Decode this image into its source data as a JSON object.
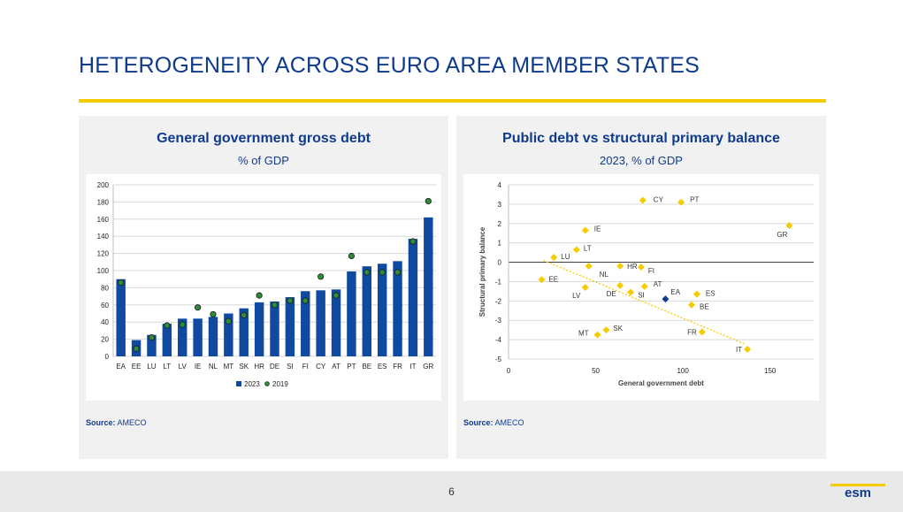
{
  "slide": {
    "title": "HETEROGENEITY ACROSS EURO AREA MEMBER STATES",
    "page_number": "6",
    "logo_text": "esm",
    "colors": {
      "title": "#0f3b8c",
      "rule": "#f5cc00",
      "bar": "#0f4aa0",
      "dot": "#2e8b3a",
      "diamond": "#f5cc00",
      "ea_diamond": "#0f3b8c"
    }
  },
  "left_panel": {
    "title": "General government gross debt",
    "subtitle": "% of GDP",
    "source_label": "Source:",
    "source_text": "AMECO"
  },
  "right_panel": {
    "title": "Public debt vs structural primary balance",
    "subtitle": "2023, % of GDP",
    "source_label": "Source:",
    "source_text": "AMECO"
  },
  "chart_data": [
    {
      "type": "bar",
      "title": "General government gross debt",
      "subtitle": "% of GDP",
      "categories": [
        "EA",
        "EE",
        "LU",
        "LT",
        "LV",
        "IE",
        "NL",
        "MT",
        "SK",
        "HR",
        "DE",
        "SI",
        "FI",
        "CY",
        "AT",
        "PT",
        "BE",
        "ES",
        "FR",
        "IT",
        "GR"
      ],
      "series": [
        {
          "name": "2023",
          "kind": "bar",
          "values": [
            90,
            19,
            25,
            38,
            44,
            44,
            46,
            50,
            56,
            63,
            64,
            69,
            76,
            77,
            78,
            99,
            105,
            108,
            111,
            137,
            162
          ]
        },
        {
          "name": "2019",
          "kind": "dot",
          "values": [
            86,
            9,
            22,
            36,
            37,
            57,
            49,
            41,
            48,
            71,
            60,
            65,
            65,
            93,
            71,
            117,
            98,
            98,
            98,
            134,
            181
          ]
        }
      ],
      "ylim": [
        0,
        200
      ],
      "yticks": [
        0,
        20,
        40,
        60,
        80,
        100,
        120,
        140,
        160,
        180,
        200
      ],
      "legend_position": "bottom",
      "grid": true
    },
    {
      "type": "scatter",
      "title": "Public debt vs structural primary balance",
      "subtitle": "2023, % of GDP",
      "xlabel": "General government debt",
      "ylabel": "Structural primary balance",
      "xlim": [
        0,
        175
      ],
      "ylim": [
        -5,
        4
      ],
      "xticks": [
        0,
        50,
        100,
        150
      ],
      "yticks": [
        -5,
        -4,
        -3,
        -2,
        -1,
        0,
        1,
        2,
        3,
        4
      ],
      "grid": true,
      "trendline": {
        "style": "dotted",
        "from": [
          20,
          0.1
        ],
        "to": [
          135,
          -4.2
        ]
      },
      "points": [
        {
          "label": "EE",
          "x": 19,
          "y": -0.9
        },
        {
          "label": "LU",
          "x": 26,
          "y": 0.25
        },
        {
          "label": "LT",
          "x": 39,
          "y": 0.65
        },
        {
          "label": "IE",
          "x": 44,
          "y": 1.65
        },
        {
          "label": "LV",
          "x": 44,
          "y": -1.3
        },
        {
          "label": "NL",
          "x": 46,
          "y": -0.2
        },
        {
          "label": "MT",
          "x": 51,
          "y": -3.75
        },
        {
          "label": "SK",
          "x": 56,
          "y": -3.5
        },
        {
          "label": "HR",
          "x": 64,
          "y": -0.2
        },
        {
          "label": "DE",
          "x": 64,
          "y": -1.2
        },
        {
          "label": "SI",
          "x": 70,
          "y": -1.55
        },
        {
          "label": "FI",
          "x": 76,
          "y": -0.25
        },
        {
          "label": "AT",
          "x": 78,
          "y": -1.25
        },
        {
          "label": "CY",
          "x": 77,
          "y": 3.2
        },
        {
          "label": "EA",
          "x": 90,
          "y": -1.9,
          "highlight": true
        },
        {
          "label": "PT",
          "x": 99,
          "y": 3.1
        },
        {
          "label": "BE",
          "x": 105,
          "y": -2.2
        },
        {
          "label": "ES",
          "x": 108,
          "y": -1.65
        },
        {
          "label": "FR",
          "x": 111,
          "y": -3.6
        },
        {
          "label": "IT",
          "x": 137,
          "y": -4.5
        },
        {
          "label": "GR",
          "x": 161,
          "y": 1.9
        }
      ]
    }
  ]
}
